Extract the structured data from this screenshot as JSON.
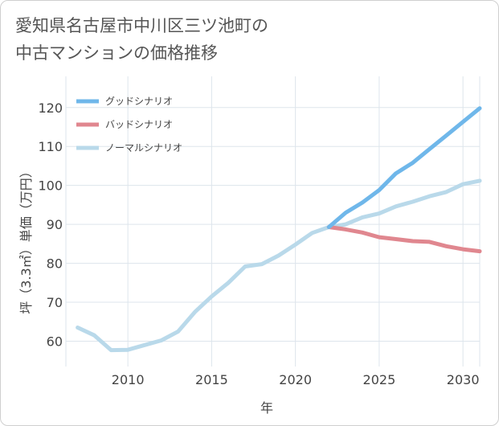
{
  "title": {
    "line1": "愛知県名古屋市中川区三ツ池町の",
    "line2": "中古マンションの価格推移"
  },
  "chart_data": {
    "type": "line",
    "xlabel": "年",
    "ylabel": "坪（3.3㎡）単価（万円）",
    "xlim": [
      2006.3,
      2031
    ],
    "ylim": [
      53.5,
      128
    ],
    "x_ticks": [
      2010,
      2015,
      2020,
      2025,
      2030
    ],
    "y_ticks": [
      60,
      70,
      80,
      90,
      100,
      110,
      120
    ],
    "grid": true,
    "legend_position": "top-left",
    "colors": {
      "good": "#6fb7ea",
      "bad": "#e0878f",
      "normal": "#b9d9ea"
    },
    "series": [
      {
        "key": "normal",
        "name": "ノーマルシナリオ",
        "x": [
          2007,
          2008,
          2009,
          2010,
          2011,
          2012,
          2013,
          2014,
          2015,
          2016,
          2017,
          2018,
          2019,
          2020,
          2021,
          2022,
          2023,
          2024,
          2025,
          2026,
          2027,
          2028,
          2029,
          2030,
          2031
        ],
        "values": [
          63.5,
          61.5,
          57.7,
          57.8,
          59.0,
          60.2,
          62.5,
          67.5,
          71.5,
          75.0,
          79.2,
          79.8,
          82.0,
          84.8,
          87.8,
          89.3,
          90.0,
          91.8,
          92.8,
          94.6,
          95.8,
          97.2,
          98.3,
          100.3,
          101.2
        ]
      },
      {
        "key": "bad",
        "name": "バッドシナリオ",
        "x": [
          2022,
          2023,
          2024,
          2025,
          2026,
          2027,
          2028,
          2029,
          2030,
          2031
        ],
        "values": [
          89.3,
          88.7,
          87.9,
          86.7,
          86.2,
          85.7,
          85.5,
          84.4,
          83.6,
          83.1
        ]
      },
      {
        "key": "good",
        "name": "グッドシナリオ",
        "x": [
          2022,
          2023,
          2024,
          2025,
          2026,
          2027,
          2028,
          2029,
          2030,
          2031
        ],
        "values": [
          89.3,
          93.0,
          95.6,
          98.8,
          103.1,
          105.8,
          109.3,
          112.8,
          116.3,
          119.8
        ]
      }
    ],
    "legend_order": [
      "good",
      "bad",
      "normal"
    ]
  }
}
